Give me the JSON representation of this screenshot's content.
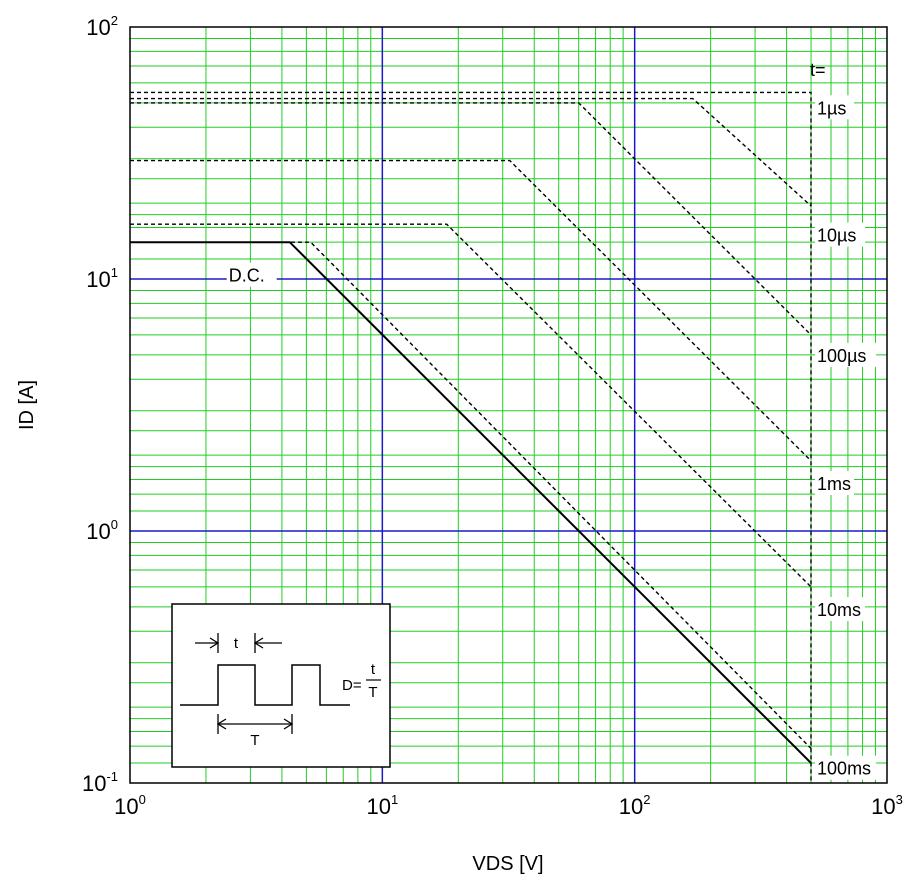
{
  "chart_data": {
    "type": "line",
    "title": "",
    "xlabel": "VDS [V]",
    "ylabel": "ID [A]",
    "x_scale": "log",
    "y_scale": "log",
    "xlim": [
      1,
      1000
    ],
    "ylim": [
      0.1,
      100
    ],
    "x_ticks": [
      {
        "base": "10",
        "exp": "0",
        "value": 1
      },
      {
        "base": "10",
        "exp": "1",
        "value": 10
      },
      {
        "base": "10",
        "exp": "2",
        "value": 100
      },
      {
        "base": "10",
        "exp": "3",
        "value": 1000
      }
    ],
    "y_ticks": [
      {
        "base": "10",
        "exp": "-1",
        "value": 0.1
      },
      {
        "base": "10",
        "exp": "0",
        "value": 1
      },
      {
        "base": "10",
        "exp": "1",
        "value": 10
      },
      {
        "base": "10",
        "exp": "2",
        "value": 100
      }
    ],
    "grid": true,
    "colors": {
      "minor_grid": "#22cc22",
      "major_grid": "#1a1acc",
      "curve": "#000000"
    },
    "series_header": "t=",
    "series": [
      {
        "name": "1µs",
        "style": "dashed",
        "x": [
          1,
          500,
          500
        ],
        "y": [
          55,
          55,
          0.1
        ],
        "label_at": [
          500,
          48
        ]
      },
      {
        "name": "10µs",
        "style": "dashed",
        "x": [
          1,
          170,
          500
        ],
        "y": [
          52,
          52,
          19.5
        ],
        "label_at": [
          500,
          15
        ]
      },
      {
        "name": "100µs",
        "style": "dashed",
        "x": [
          1,
          60,
          500
        ],
        "y": [
          50,
          50,
          6
        ],
        "label_at": [
          500,
          5
        ]
      },
      {
        "name": "1ms",
        "style": "dashed",
        "x": [
          1,
          32,
          500
        ],
        "y": [
          29.5,
          29.5,
          1.9
        ],
        "label_at": [
          500,
          1.55
        ]
      },
      {
        "name": "10ms",
        "style": "dashed",
        "x": [
          1,
          18,
          500
        ],
        "y": [
          16.5,
          16.5,
          0.6
        ],
        "label_at": [
          500,
          0.49
        ]
      },
      {
        "name": "100ms",
        "style": "dashed",
        "x": [
          1,
          5.2,
          500
        ],
        "y": [
          14,
          14,
          0.137
        ],
        "label_at": [
          500,
          0.115
        ]
      },
      {
        "name": "D.C.",
        "style": "solid",
        "x": [
          1,
          4.3,
          500
        ],
        "y": [
          14,
          14,
          0.12
        ],
        "label_at": [
          2.6,
          10.4
        ]
      }
    ],
    "inset": {
      "pulse_label": "t",
      "period_label": "T",
      "formula_lhs": "D=",
      "formula_num": "t",
      "formula_den": "T"
    }
  }
}
